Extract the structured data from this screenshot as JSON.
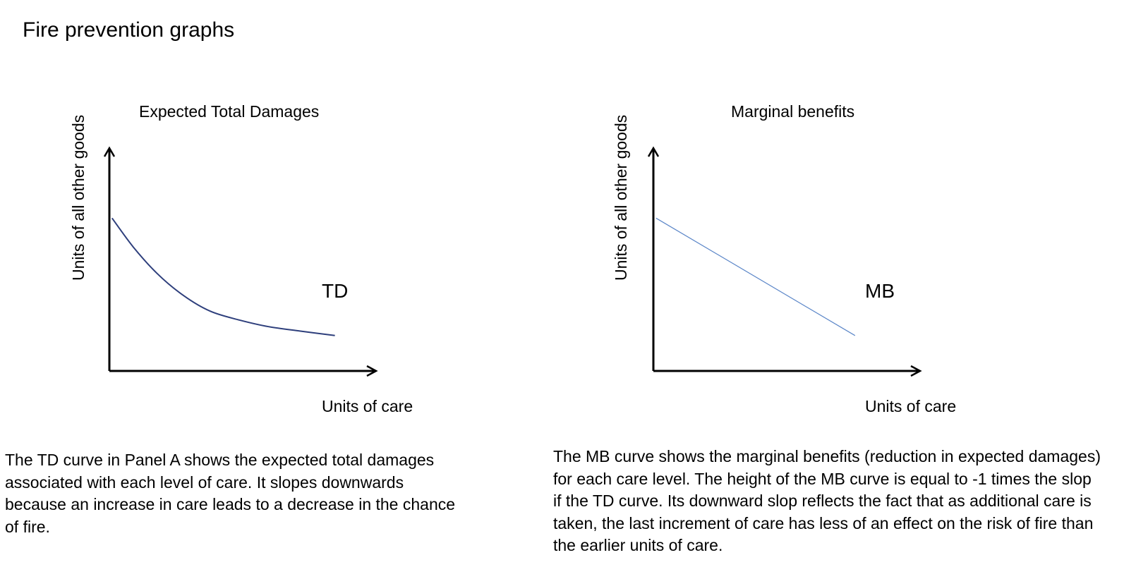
{
  "title": "Fire prevention graphs",
  "panels": [
    {
      "title": "Expected Total Damages",
      "ylabel": "Units of all other goods",
      "xlabel": "Units of care",
      "curve_label": "TD",
      "caption": "The TD curve in Panel A shows the expected total damages associated with each level of care. It slopes downwards because an increase in care leads to a decrease in the chance of fire."
    },
    {
      "title": "Marginal benefits",
      "ylabel": "Units of all other goods",
      "xlabel": "Units of care",
      "curve_label": "MB",
      "caption": "The MB curve shows the marginal benefits (reduction in expected damages) for each care level. The height of the MB curve is equal to -1 times the slop if the TD curve. Its downward slop reflects the fact that as additional care is taken, the last increment of care has less of an effect on the risk of fire than the earlier units of care."
    }
  ],
  "colors": {
    "td_curve": "#2e3f7c",
    "mb_curve": "#5b86c8",
    "axes": "#000000"
  },
  "chart_data": [
    {
      "type": "line",
      "title": "Expected Total Damages",
      "xlabel": "Units of care",
      "ylabel": "Units of all other goods",
      "xlim": [
        0,
        10
      ],
      "ylim": [
        0,
        10
      ],
      "grid": false,
      "series": [
        {
          "name": "TD",
          "x": [
            0.1,
            0.9,
            1.8,
            2.8,
            3.8,
            4.9,
            6.0,
            7.2,
            8.5
          ],
          "y": [
            6.9,
            5.6,
            4.4,
            3.4,
            2.7,
            2.3,
            2.0,
            1.8,
            1.6
          ]
        }
      ]
    },
    {
      "type": "line",
      "title": "Marginal benefits",
      "xlabel": "Units of care",
      "ylabel": "Units of all other goods",
      "xlim": [
        0,
        10
      ],
      "ylim": [
        0,
        10
      ],
      "grid": false,
      "series": [
        {
          "name": "MB",
          "x": [
            0.1,
            7.6
          ],
          "y": [
            6.9,
            1.6
          ]
        }
      ]
    }
  ]
}
